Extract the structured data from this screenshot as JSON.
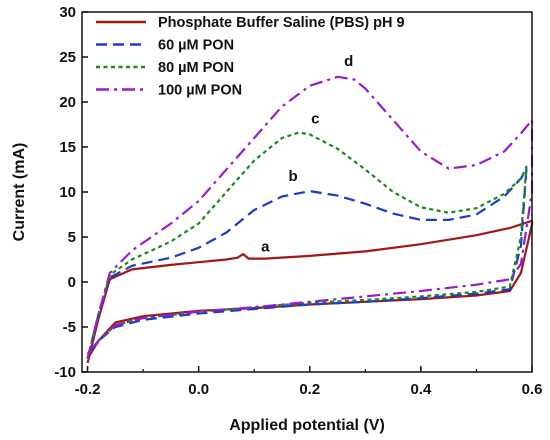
{
  "chart_data": {
    "type": "line",
    "xlabel": "Applied potential (V)",
    "ylabel": "Current (mA)",
    "xlim": [
      -0.21,
      0.6
    ],
    "ylim": [
      -10,
      30
    ],
    "xticks": [
      -0.2,
      0.0,
      0.2,
      0.4,
      0.6
    ],
    "xtick_labels": [
      "-0.2",
      "0.0",
      "0.2",
      "0.4",
      "0.6"
    ],
    "yticks": [
      -10,
      -5,
      0,
      5,
      10,
      15,
      20,
      25,
      30
    ],
    "ytick_labels": [
      "-10",
      "-5",
      "0",
      "5",
      "10",
      "15",
      "20",
      "25",
      "30"
    ],
    "grid": false,
    "legend_position": "top-left",
    "series": [
      {
        "name": "Phosphate Buffer Saline (PBS) pH 9",
        "label": "a",
        "color": "#a01818",
        "dash": "solid",
        "x": [
          -0.2,
          -0.18,
          -0.16,
          -0.12,
          -0.05,
          0.0,
          0.05,
          0.07,
          0.08,
          0.09,
          0.12,
          0.2,
          0.3,
          0.4,
          0.5,
          0.56,
          0.58,
          0.6,
          0.6,
          0.58,
          0.56,
          0.5,
          0.4,
          0.3,
          0.2,
          0.1,
          0.0,
          -0.1,
          -0.15,
          -0.18,
          -0.2
        ],
        "y": [
          -9,
          -4,
          0.3,
          1.4,
          1.9,
          2.2,
          2.5,
          2.7,
          3.1,
          2.6,
          2.6,
          2.9,
          3.4,
          4.2,
          5.2,
          6.0,
          6.4,
          6.8,
          6.4,
          1.0,
          -1.0,
          -1.5,
          -1.9,
          -2.2,
          -2.5,
          -2.9,
          -3.2,
          -3.8,
          -4.5,
          -6.5,
          -8.5
        ]
      },
      {
        "name": "60 µM PON",
        "label": "b",
        "color": "#1a3cc8",
        "dash": "dashed",
        "x": [
          -0.2,
          -0.18,
          -0.16,
          -0.12,
          -0.05,
          0.0,
          0.05,
          0.1,
          0.15,
          0.2,
          0.25,
          0.3,
          0.35,
          0.4,
          0.45,
          0.5,
          0.55,
          0.58,
          0.59,
          0.58,
          0.56,
          0.5,
          0.4,
          0.3,
          0.2,
          0.1,
          0.0,
          -0.1,
          -0.15,
          -0.18,
          -0.2
        ],
        "y": [
          -8.5,
          -3.5,
          0.5,
          1.8,
          2.7,
          3.8,
          5.5,
          8.0,
          9.5,
          10.1,
          9.6,
          8.7,
          7.6,
          6.9,
          6.9,
          7.5,
          9.5,
          11.5,
          12.5,
          4.0,
          -0.8,
          -1.3,
          -1.8,
          -2.2,
          -2.5,
          -3.0,
          -3.5,
          -4.2,
          -5.0,
          -6.5,
          -8.0
        ]
      },
      {
        "name": "80 µM PON",
        "label": "c",
        "color": "#1a8a1a",
        "dash": "dotted",
        "x": [
          -0.2,
          -0.18,
          -0.16,
          -0.12,
          -0.05,
          0.0,
          0.05,
          0.1,
          0.15,
          0.18,
          0.2,
          0.25,
          0.3,
          0.35,
          0.4,
          0.45,
          0.5,
          0.55,
          0.58,
          0.59,
          0.58,
          0.56,
          0.5,
          0.4,
          0.3,
          0.2,
          0.1,
          0.0,
          -0.1,
          -0.15,
          -0.18,
          -0.2
        ],
        "y": [
          -8.5,
          -3.5,
          0.8,
          2.5,
          4.5,
          6.5,
          10.0,
          13.5,
          16.0,
          16.6,
          16.4,
          14.8,
          12.5,
          10.0,
          8.3,
          7.7,
          8.2,
          9.8,
          11.5,
          12.8,
          5.0,
          -0.5,
          -1.1,
          -1.6,
          -2.0,
          -2.3,
          -2.8,
          -3.3,
          -4.0,
          -4.8,
          -6.5,
          -8.0
        ]
      },
      {
        "name": "100 µM PON",
        "label": "d",
        "color": "#9a1ad0",
        "dash": "dashdot",
        "x": [
          -0.2,
          -0.18,
          -0.16,
          -0.12,
          -0.05,
          0.0,
          0.05,
          0.1,
          0.15,
          0.2,
          0.25,
          0.28,
          0.3,
          0.35,
          0.4,
          0.45,
          0.5,
          0.55,
          0.58,
          0.6,
          0.6,
          0.58,
          0.56,
          0.5,
          0.4,
          0.3,
          0.2,
          0.1,
          0.0,
          -0.1,
          -0.15,
          -0.18,
          -0.2
        ],
        "y": [
          -8.5,
          -3.5,
          1.0,
          3.5,
          6.5,
          9.0,
          12.5,
          16.0,
          19.5,
          21.8,
          22.8,
          22.5,
          21.5,
          18.0,
          14.5,
          12.6,
          13.0,
          14.5,
          16.5,
          18.0,
          10.0,
          2.0,
          0.3,
          -0.3,
          -1.0,
          -1.6,
          -2.2,
          -2.8,
          -3.3,
          -4.0,
          -4.8,
          -6.5,
          -8.0
        ]
      }
    ]
  }
}
